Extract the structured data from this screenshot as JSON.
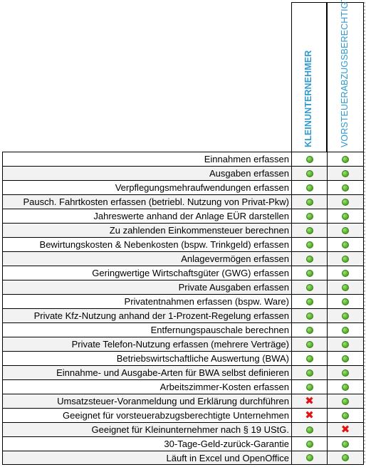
{
  "header": {
    "col1_label": "KLEINUNTERNEHMER",
    "col2_label": "VORSTEUERABZUGSBERECHTIGT"
  },
  "colors": {
    "header_text": "#2e9ad0",
    "check_green": "#5cb82f",
    "cross_red": "#e01414",
    "alt_row": "#f2f2f2"
  },
  "rows": [
    {
      "label": "Einnahmen erfassen",
      "col1": "check",
      "col2": "check"
    },
    {
      "label": "Ausgaben erfassen",
      "col1": "check",
      "col2": "check"
    },
    {
      "label": "Verpflegungsmehraufwendungen erfassen",
      "col1": "check",
      "col2": "check"
    },
    {
      "label": "Pausch. Fahrtkosten erfassen (betriebl. Nutzung von Privat-Pkw)",
      "col1": "check",
      "col2": "check"
    },
    {
      "label": "Jahreswerte anhand der Anlage EÜR darstellen",
      "col1": "check",
      "col2": "check"
    },
    {
      "label": "Zu zahlenden Einkommensteuer berechnen",
      "col1": "check",
      "col2": "check"
    },
    {
      "label": "Bewirtungskosten & Nebenkosten (bspw. Trinkgeld) erfassen",
      "col1": "check",
      "col2": "check"
    },
    {
      "label": "Anlagevermögen erfassen",
      "col1": "check",
      "col2": "check"
    },
    {
      "label": "Geringwertige Wirtschaftsgüter (GWG) erfassen",
      "col1": "check",
      "col2": "check"
    },
    {
      "label": "Private Ausgaben erfassen",
      "col1": "check",
      "col2": "check"
    },
    {
      "label": "Privatentnahmen erfassen (bspw. Ware)",
      "col1": "check",
      "col2": "check"
    },
    {
      "label": "Private Kfz-Nutzung anhand der 1-Prozent-Regelung erfassen",
      "col1": "check",
      "col2": "check"
    },
    {
      "label": "Entfernungspauschale berechnen",
      "col1": "check",
      "col2": "check"
    },
    {
      "label": "Private Telefon-Nutzung erfassen (mehrere Verträge)",
      "col1": "check",
      "col2": "check"
    },
    {
      "label": "Betriebswirtschaftliche Auswertung (BWA)",
      "col1": "check",
      "col2": "check"
    },
    {
      "label": "Einnahme- und Ausgabe-Arten für BWA selbst definieren",
      "col1": "check",
      "col2": "check"
    },
    {
      "label": "Arbeitszimmer-Kosten erfassen",
      "col1": "check",
      "col2": "check"
    },
    {
      "label": "Umsatzsteuer-Voranmeldung und Erklärung durchführen",
      "col1": "cross",
      "col2": "check"
    },
    {
      "label": "Geeignet für vorsteuerabzugsberechtigte Unternehmen",
      "col1": "cross",
      "col2": "check"
    },
    {
      "label": "Geeignet für Kleinunternehmer nach § 19 UStG.",
      "col1": "check",
      "col2": "cross"
    },
    {
      "label": "30-Tage-Geld-zurück-Garantie",
      "col1": "check",
      "col2": "check"
    },
    {
      "label": "Läuft in Excel und OpenOffice",
      "col1": "check",
      "col2": "check"
    }
  ]
}
